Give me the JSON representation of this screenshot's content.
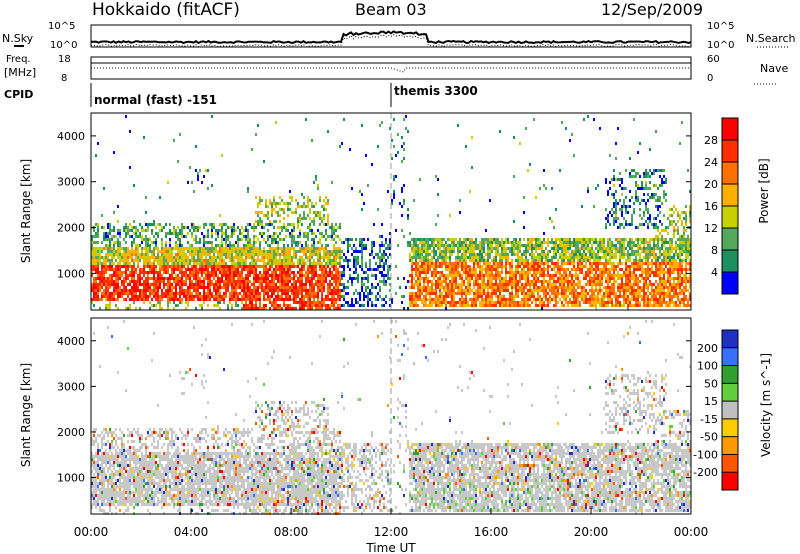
{
  "header": {
    "station": "Hokkaido (fitACF)",
    "beam": "Beam 03",
    "date": "12/Sep/2009"
  },
  "colors": {
    "power_scale": [
      "#0000ff",
      "#1e9060",
      "#54a85a",
      "#c8d000",
      "#ffb000",
      "#ff7000",
      "#ff3000",
      "#ff0000"
    ],
    "velocity_scale": [
      "#2030c0",
      "#3a70ff",
      "#30a030",
      "#60d040",
      "#c0c0c0",
      "#ffcc00",
      "#ff9900",
      "#ff5500",
      "#ff0000"
    ],
    "ground_scatter": "#c8c8c8"
  },
  "chart_data": [
    {
      "type": "line",
      "name": "noise-panel",
      "left_labels": [
        "N.Sky"
      ],
      "right_labels": [
        "N.Search"
      ],
      "left_ticks": [
        "10^5",
        "10^0"
      ],
      "right_ticks": [
        "10^5",
        "10^0"
      ],
      "xlim": [
        0,
        24
      ]
    },
    {
      "type": "line",
      "name": "frequency-panel",
      "left_labels": [
        "Freq.",
        "[MHz]"
      ],
      "right_labels": [
        "Nave"
      ],
      "left_ticks": [
        "18",
        "8"
      ],
      "right_ticks": [
        "60",
        "0"
      ],
      "ylim_freq": [
        8,
        18
      ],
      "ylim_nave": [
        0,
        60
      ],
      "xlim": [
        0,
        24
      ]
    },
    {
      "type": "table",
      "name": "cpid-panel",
      "label": "CPID",
      "segments": [
        {
          "start_hour": 0,
          "end_hour": 12,
          "label": "normal (fast) -151"
        },
        {
          "start_hour": 12,
          "end_hour": 24,
          "label": "themis 3300"
        }
      ]
    },
    {
      "type": "heatmap",
      "name": "power-panel",
      "ylabel": "Slant Range [km]",
      "yticks": [
        1000,
        2000,
        3000,
        4000
      ],
      "ylim": [
        200,
        4500
      ],
      "xlim": [
        0,
        24
      ],
      "colorbar_label": "Power [dB]",
      "colorbar_ticks": [
        4,
        8,
        12,
        16,
        20,
        24,
        28
      ],
      "colorbar_range": [
        0,
        32
      ]
    },
    {
      "type": "heatmap",
      "name": "velocity-panel",
      "ylabel": "Slant Range [km]",
      "yticks": [
        1000,
        2000,
        3000,
        4000
      ],
      "ylim": [
        200,
        4500
      ],
      "xlim": [
        0,
        24
      ],
      "xlabel": "Time UT",
      "xticks": [
        "00:00",
        "04:00",
        "08:00",
        "12:00",
        "16:00",
        "20:00",
        "00:00"
      ],
      "colorbar_label": "Velocity [m s^-1]",
      "colorbar_ticks": [
        200,
        100,
        50,
        15,
        -15,
        -50,
        -100,
        -200
      ]
    }
  ]
}
